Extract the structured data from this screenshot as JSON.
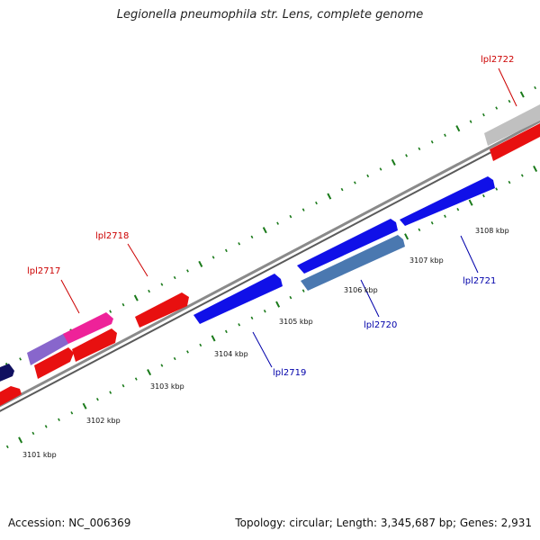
{
  "title": "Legionella pneumophila str. Lens, complete genome",
  "footer": {
    "accession": "Accession: NC_006369",
    "stats": "Topology: circular; Length: 3,345,687 bp; Genes: 2,931"
  },
  "colors": {
    "backbone": "#8a8a8a",
    "tick": "#1a7a1a",
    "forward_label": "#cc0000",
    "reverse_label": "#0000aa"
  },
  "ticks": [
    "3101 kbp",
    "3102 kbp",
    "3103 kbp",
    "3104 kbp",
    "3105 kbp",
    "3106 kbp",
    "3107 kbp",
    "3108 kbp"
  ],
  "gene_labels": [
    "lpl2717",
    "lpl2718",
    "lpl2719",
    "lpl2720",
    "lpl2721",
    "lpl2722"
  ]
}
